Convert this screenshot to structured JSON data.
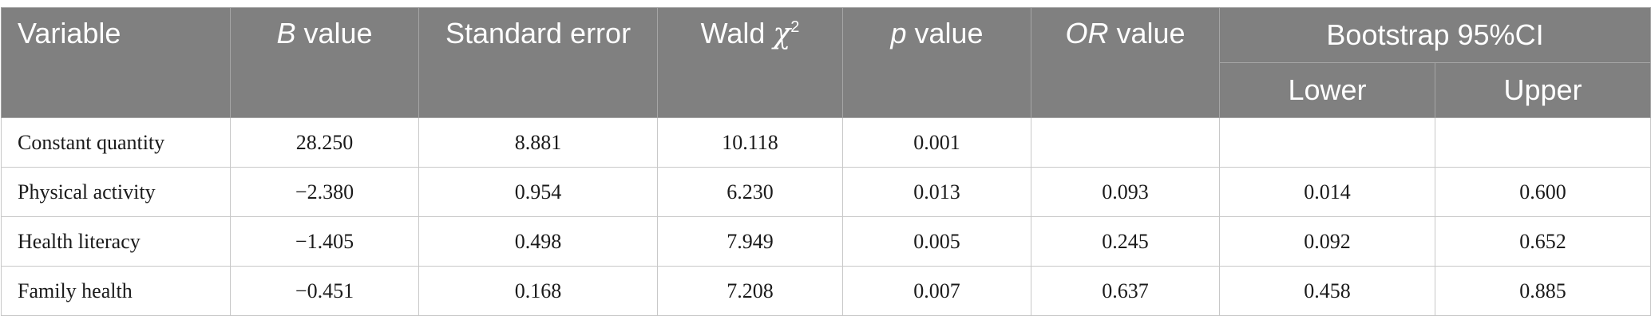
{
  "table": {
    "headers": {
      "variable": "Variable",
      "b_italic": "B",
      "b_rest": " value",
      "se": "Standard error",
      "wald_text": "Wald ",
      "wald_symbol": "χ",
      "wald_sup": "2",
      "p_italic": "p",
      "p_rest": " value",
      "or_italic": "OR",
      "or_rest": " value",
      "bootstrap": "Bootstrap 95%CI",
      "lower": "Lower",
      "upper": "Upper"
    },
    "rows": [
      {
        "variable": "Constant quantity",
        "b": "28.250",
        "se": "8.881",
        "wald": "10.118",
        "p": "0.001",
        "or": "",
        "lower": "",
        "upper": ""
      },
      {
        "variable": "Physical activity",
        "b": "−2.380",
        "se": "0.954",
        "wald": "6.230",
        "p": "0.013",
        "or": "0.093",
        "lower": "0.014",
        "upper": "0.600"
      },
      {
        "variable": "Health literacy",
        "b": "−1.405",
        "se": "0.498",
        "wald": "7.949",
        "p": "0.005",
        "or": "0.245",
        "lower": "0.092",
        "upper": "0.652"
      },
      {
        "variable": "Family health",
        "b": "−0.451",
        "se": "0.168",
        "wald": "7.208",
        "p": "0.007",
        "or": "0.637",
        "lower": "0.458",
        "upper": "0.885"
      }
    ]
  }
}
